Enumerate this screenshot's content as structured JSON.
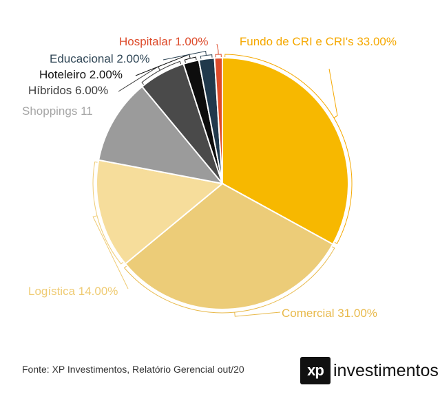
{
  "chart_data": {
    "type": "pie",
    "title": "",
    "label_format": "{name} {value}",
    "start": "12 o'clock, clockwise",
    "slices": [
      {
        "name": "Fundo de CRI e CRI's",
        "value": 33,
        "value_label": "33.00%",
        "color": "#F7B800",
        "label_color": "#F5A800"
      },
      {
        "name": "Comercial ",
        "value": 31,
        "value_label": "31.00%",
        "color": "#ECCC78",
        "label_color": "#E8B94A"
      },
      {
        "name": "Logística",
        "value": 14,
        "value_label": "14.00%",
        "color": "#F6DD9B",
        "label_color": "#EFCB73"
      },
      {
        "name": "Shoppings",
        "value": 11,
        "value_label": "11",
        "color": "#9B9B9B",
        "label_color": "#A6A6A6"
      },
      {
        "name": "Híbridos",
        "value": 6,
        "value_label": "6.00%",
        "color": "#4A4A4A",
        "label_color": "#3D3D3D"
      },
      {
        "name": "Hoteleiro ",
        "value": 2,
        "value_label": "2.00%",
        "color": "#0D0D0D",
        "label_color": "#111111"
      },
      {
        "name": "Educacional",
        "value": 2,
        "value_label": "2.00%",
        "color": "#21394C",
        "label_color": "#2F4656"
      },
      {
        "name": "Hospitalar",
        "value": 1,
        "value_label": "1.00%",
        "color": "#DD4B2B",
        "label_color": "#DD4B2B"
      }
    ]
  },
  "footer": {
    "source": "Fonte: XP Investimentos, Relatório Gerencial out/20"
  },
  "logo": {
    "mark": "xp",
    "word": "investimentos"
  }
}
